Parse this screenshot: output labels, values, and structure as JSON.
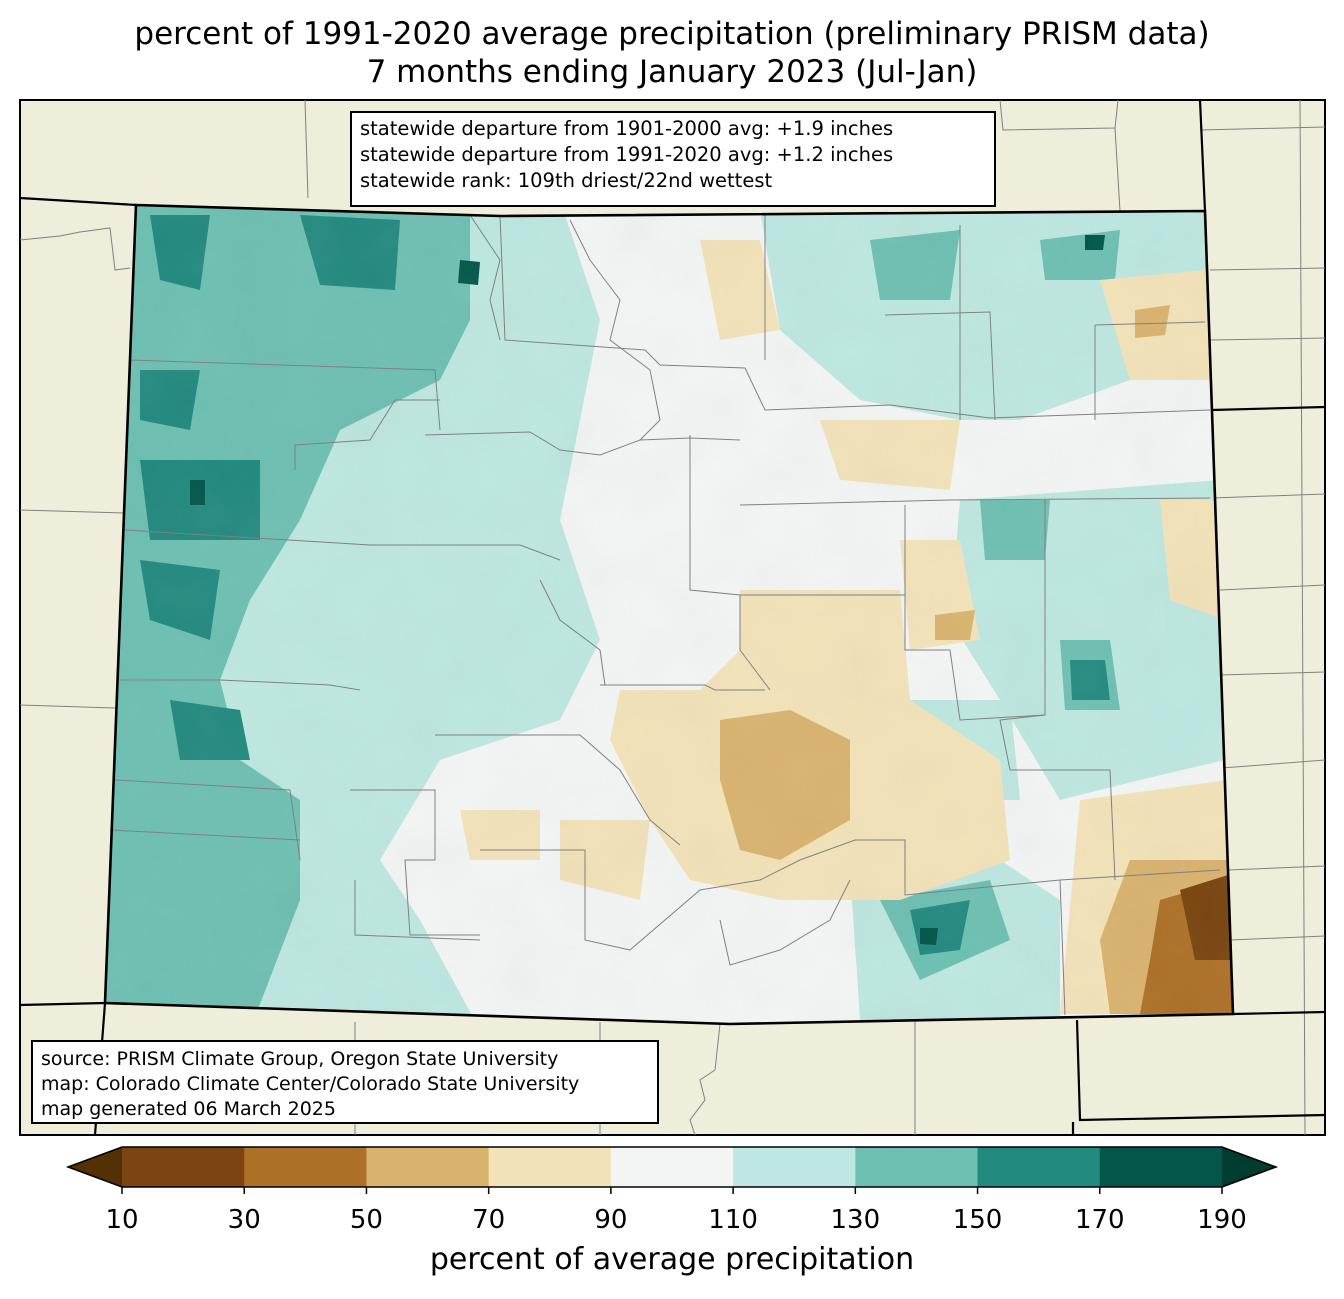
{
  "title": {
    "line1": "percent of 1991-2020 average precipitation (preliminary PRISM data)",
    "line2": "7 months ending January 2023 (Jul-Jan)"
  },
  "stats": {
    "line1": "statewide departure from 1901-2000 avg: +1.9 inches",
    "line2": "statewide departure from 1991-2020 avg: +1.2 inches",
    "line3": "statewide rank: 109th driest/22nd wettest"
  },
  "source": {
    "line1": "source: PRISM Climate Group, Oregon State University",
    "line2": "map: Colorado Climate Center/Colorado State University",
    "line3": "map generated 06 March 2025"
  },
  "colorbar": {
    "label": "percent of average precipitation",
    "ticks": [
      "10",
      "30",
      "50",
      "70",
      "90",
      "110",
      "130",
      "150",
      "170",
      "190"
    ],
    "under_color": "#543005",
    "over_color": "#003c30",
    "bins": [
      {
        "from": 10,
        "to": 30,
        "color": "#7a4510"
      },
      {
        "from": 30,
        "to": 50,
        "color": "#ad7027"
      },
      {
        "from": 50,
        "to": 70,
        "color": "#d9b26e"
      },
      {
        "from": 70,
        "to": 90,
        "color": "#f2e2b8"
      },
      {
        "from": 90,
        "to": 110,
        "color": "#f3f5f4"
      },
      {
        "from": 110,
        "to": 130,
        "color": "#bde7e0"
      },
      {
        "from": 130,
        "to": 150,
        "color": "#6dbfb2"
      },
      {
        "from": 150,
        "to": 170,
        "color": "#22897f"
      },
      {
        "from": 170,
        "to": 190,
        "color": "#02564a"
      }
    ]
  },
  "colors": {
    "land": "#efeedb",
    "state_border": "#000000",
    "county_line": "#808080"
  }
}
